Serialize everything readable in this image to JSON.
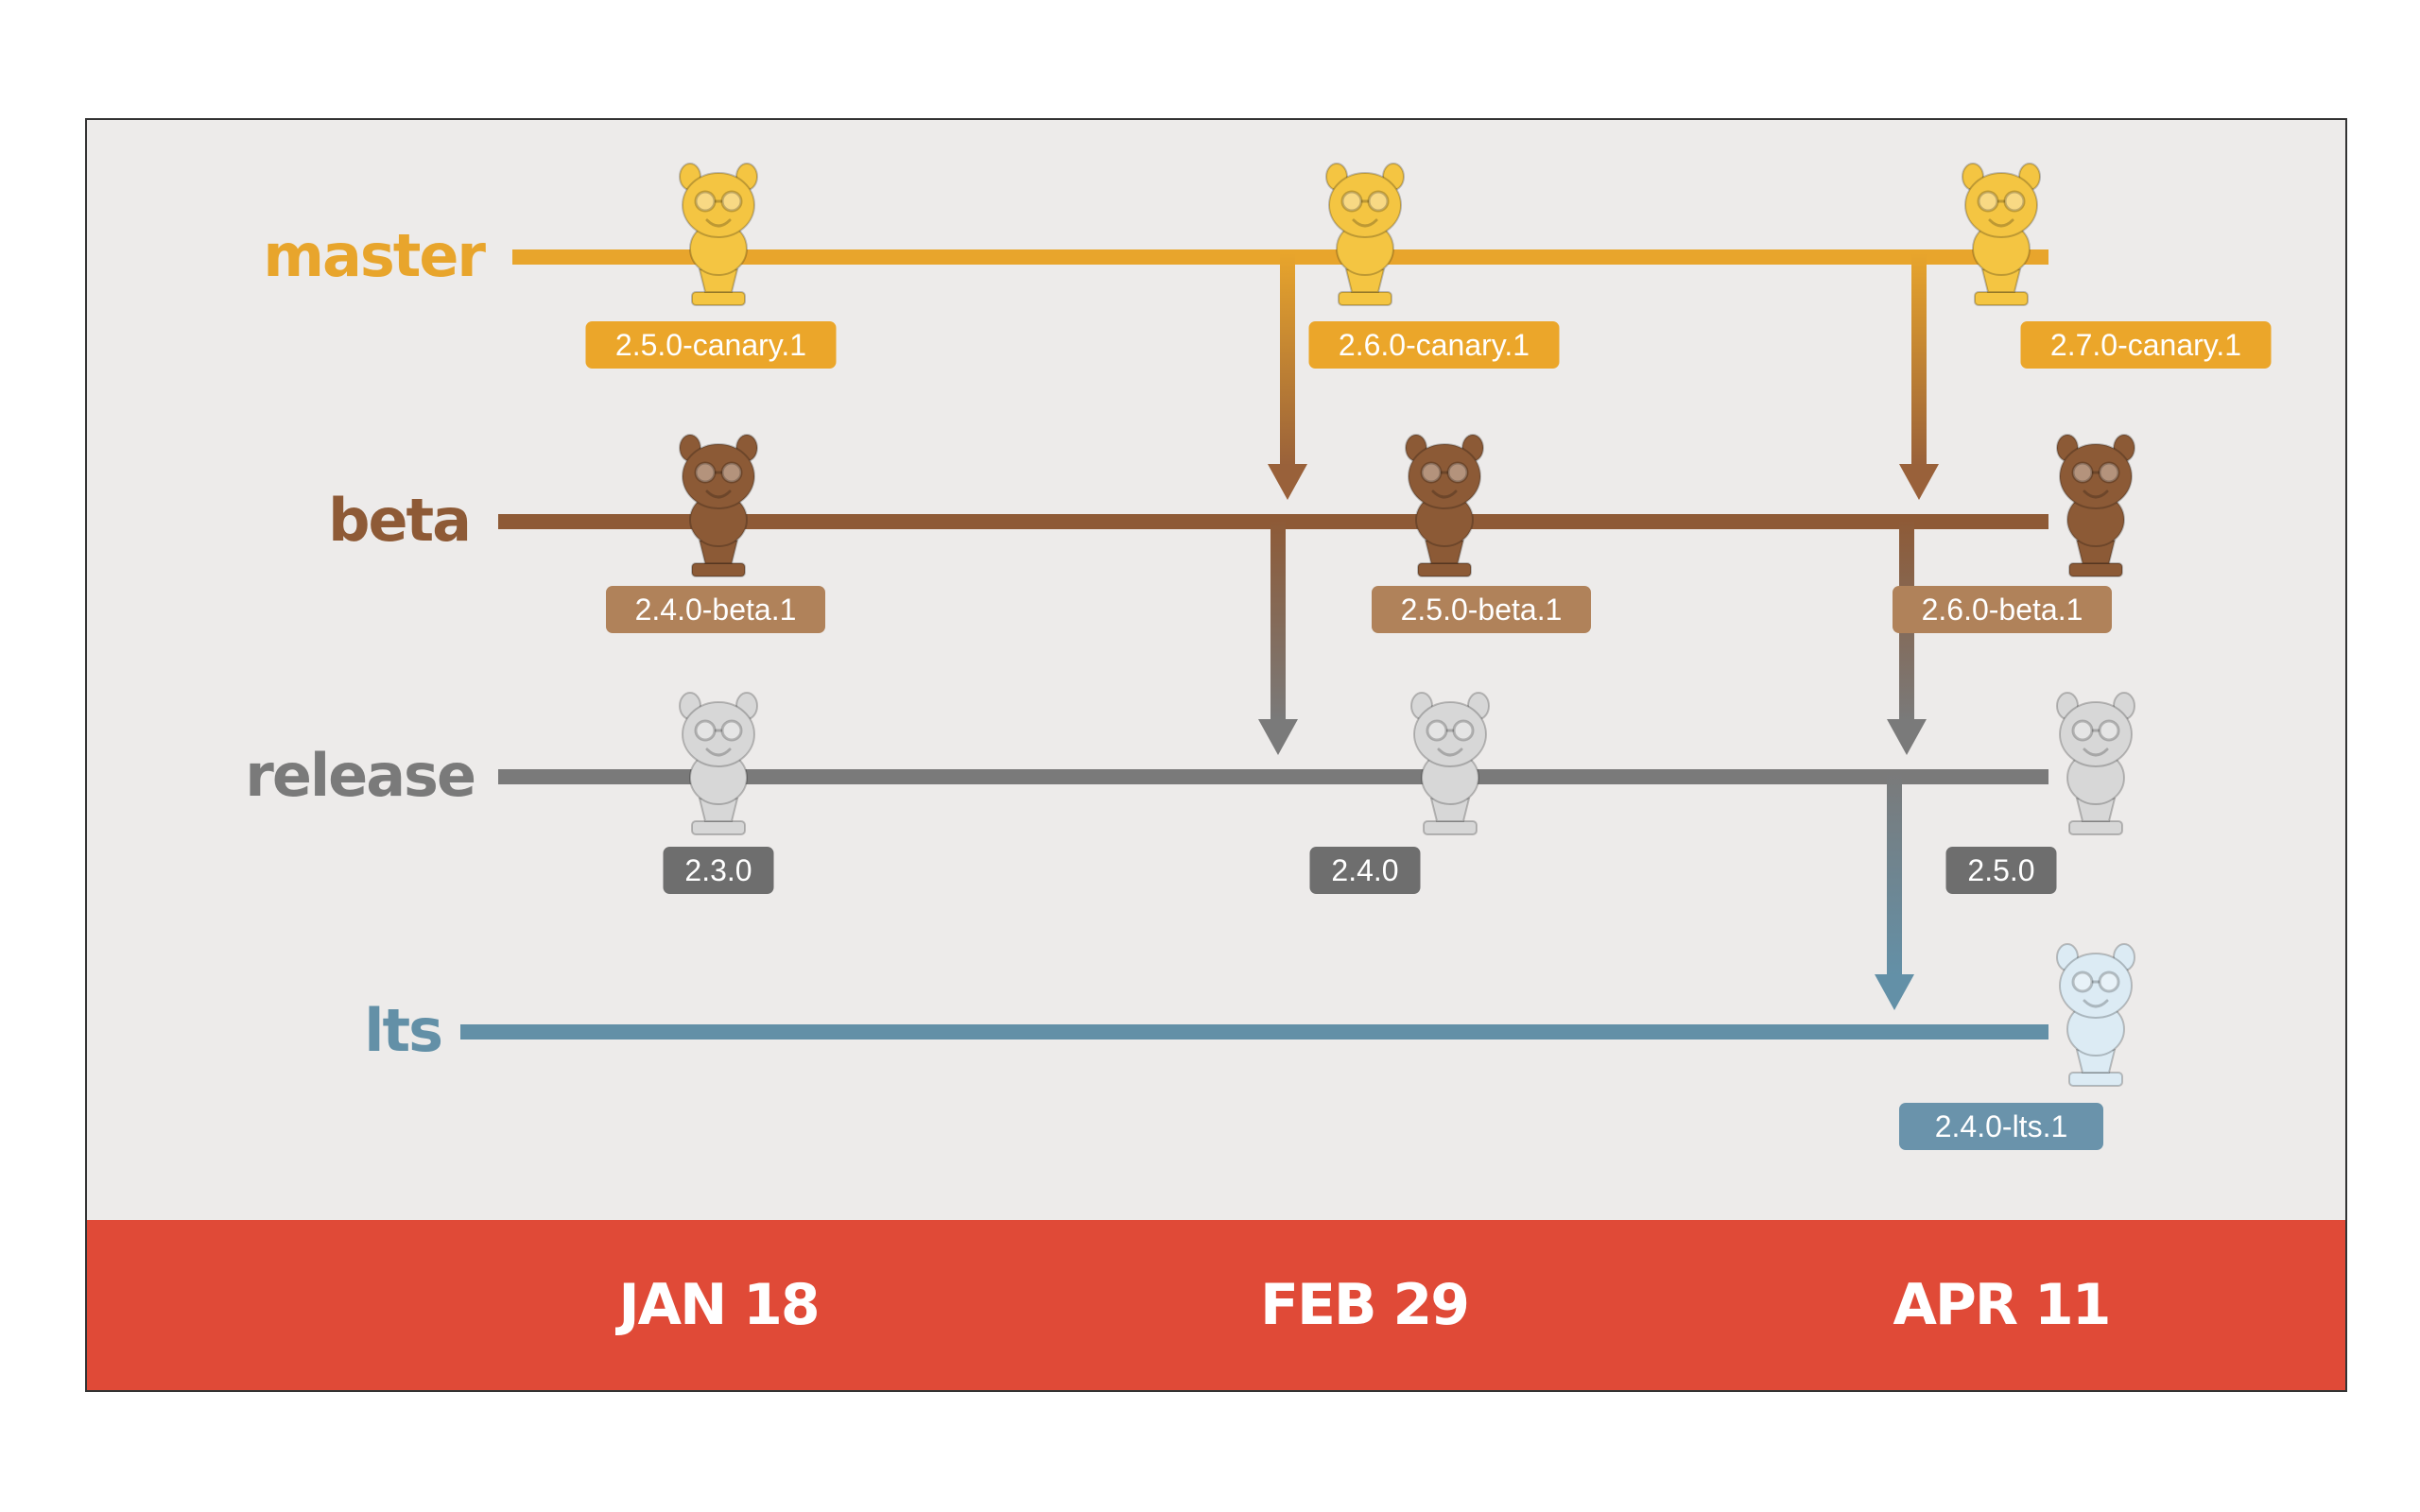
{
  "branches": [
    {
      "id": "master",
      "label": "master",
      "color": "#e8a52c",
      "badge_color": "#eba62a",
      "mascot_color": "#f4c542"
    },
    {
      "id": "beta",
      "label": "beta",
      "color": "#8e5a36",
      "badge_color": "#b0825a",
      "mascot_color": "#8c5a36"
    },
    {
      "id": "release",
      "label": "release",
      "color": "#7a7a7a",
      "badge_color": "#6e6e6e",
      "mascot_color": "#d7d7d7"
    },
    {
      "id": "lts",
      "label": "lts",
      "color": "#6390a7",
      "badge_color": "#6a93ab",
      "mascot_color": "#dcebf4"
    }
  ],
  "versions": {
    "master": [
      "2.5.0-canary.1",
      "2.6.0-canary.1",
      "2.7.0-canary.1"
    ],
    "beta": [
      "2.4.0-beta.1",
      "2.5.0-beta.1",
      "2.6.0-beta.1"
    ],
    "release": [
      "2.3.0",
      "2.4.0",
      "2.5.0"
    ],
    "lts": [
      "2.4.0-lts.1"
    ]
  },
  "dates": [
    "JAN 18",
    "FEB 29",
    "APR 11"
  ],
  "date_bar_color": "#e04a37",
  "icons": {
    "mascot": "tomster-trophy-icon",
    "arrow": "arrow-down-icon"
  }
}
